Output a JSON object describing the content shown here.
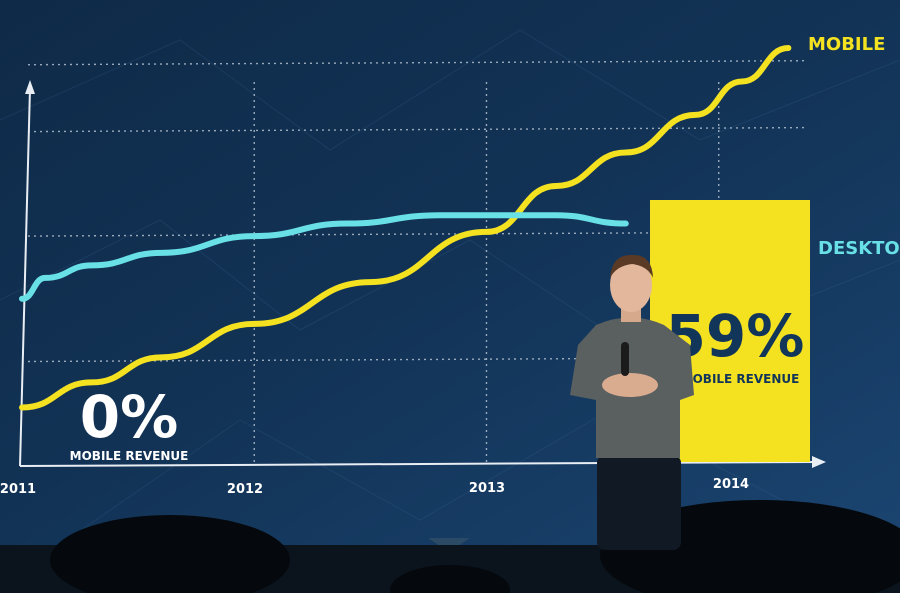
{
  "chart_data": {
    "type": "line",
    "x_ticks": [
      "2011",
      "2012",
      "2013",
      "2014"
    ],
    "xlim": [
      0,
      3.35
    ],
    "ylim": [
      0,
      100
    ],
    "grid": true,
    "series": [
      {
        "name": "MOBILE",
        "color": "#f4e221",
        "x": [
          0,
          0.3,
          0.6,
          1.0,
          1.5,
          2.0,
          2.3,
          2.6,
          2.9,
          3.1,
          3.3
        ],
        "y": [
          14,
          20,
          26,
          34,
          44,
          56,
          67,
          75,
          84,
          92,
          100
        ]
      },
      {
        "name": "DESKTOP",
        "color": "#69e0e6",
        "x": [
          0,
          0.1,
          0.3,
          0.6,
          1.0,
          1.4,
          1.8,
          2.0,
          2.3,
          2.6
        ],
        "y": [
          40,
          45,
          48,
          51,
          55,
          58,
          60,
          60,
          60,
          58
        ]
      }
    ],
    "annotations": [
      {
        "id": "start",
        "value": "0%",
        "label": "MOBILE REVENUE"
      },
      {
        "id": "end",
        "value": "59%",
        "label": "MOBILE REVENUE",
        "highlight_color": "#f4e221"
      }
    ]
  },
  "colors": {
    "background": "#123356",
    "grid": "#c8d3df",
    "axis": "#e9eef4",
    "text": "#ffffff",
    "highlight_text": "#12355a"
  }
}
